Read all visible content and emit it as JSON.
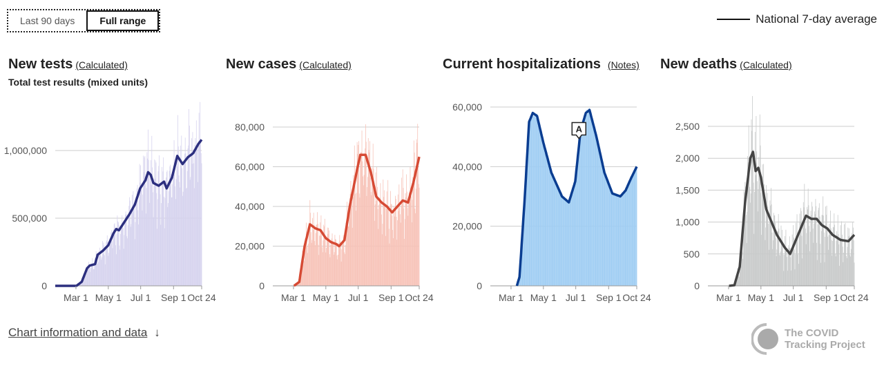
{
  "controls": {
    "last90": "Last 90 days",
    "full": "Full range"
  },
  "legend": {
    "label": "National 7-day average"
  },
  "footer": {
    "link": "Chart information and data",
    "arrow": "↓"
  },
  "logo": {
    "line1": "The COVID",
    "line2": "Tracking Project"
  },
  "chart_data": [
    {
      "type": "bar",
      "title": "New tests",
      "note": "(Calculated)",
      "subtitle": "Total test results (mixed units)",
      "color": "#2c2f7f",
      "bar_color": "#d6d3ee",
      "ylim": [
        0,
        1200000
      ],
      "yticks": [
        0,
        500000,
        1000000
      ],
      "ytick_labels": [
        "0",
        "500,000",
        "1,000,000"
      ],
      "xticks": [
        "Mar 1",
        "May 1",
        "Jul 1",
        "Sep 1",
        "Oct 24"
      ],
      "xtick_days": [
        39,
        100,
        161,
        223,
        276
      ],
      "x_unit": "days since Jan 22",
      "average": [
        [
          0,
          0
        ],
        [
          40,
          0
        ],
        [
          50,
          30000
        ],
        [
          60,
          130000
        ],
        [
          65,
          150000
        ],
        [
          75,
          160000
        ],
        [
          80,
          230000
        ],
        [
          90,
          260000
        ],
        [
          100,
          300000
        ],
        [
          110,
          390000
        ],
        [
          115,
          420000
        ],
        [
          120,
          410000
        ],
        [
          130,
          470000
        ],
        [
          140,
          530000
        ],
        [
          150,
          600000
        ],
        [
          160,
          720000
        ],
        [
          170,
          780000
        ],
        [
          175,
          840000
        ],
        [
          180,
          820000
        ],
        [
          185,
          760000
        ],
        [
          195,
          740000
        ],
        [
          205,
          770000
        ],
        [
          210,
          720000
        ],
        [
          220,
          800000
        ],
        [
          230,
          960000
        ],
        [
          240,
          900000
        ],
        [
          250,
          950000
        ],
        [
          260,
          980000
        ],
        [
          270,
          1050000
        ],
        [
          276,
          1080000
        ]
      ]
    },
    {
      "type": "bar",
      "title": "New cases",
      "note": "(Calculated)",
      "color": "#d64a34",
      "bar_color": "#f7c3b8",
      "ylim": [
        0,
        80000
      ],
      "yticks": [
        0,
        20000,
        40000,
        60000,
        80000
      ],
      "ytick_labels": [
        "0",
        "20,000",
        "40,000",
        "60,000",
        "80,000"
      ],
      "xticks": [
        "Mar 1",
        "May 1",
        "Jul 1",
        "Sep 1",
        "Oct 24"
      ],
      "xtick_days": [
        39,
        100,
        161,
        223,
        276
      ],
      "average": [
        [
          40,
          0
        ],
        [
          50,
          2000
        ],
        [
          60,
          20000
        ],
        [
          70,
          31000
        ],
        [
          80,
          29000
        ],
        [
          90,
          28000
        ],
        [
          100,
          24000
        ],
        [
          110,
          22000
        ],
        [
          120,
          21000
        ],
        [
          125,
          20000
        ],
        [
          135,
          23000
        ],
        [
          145,
          40000
        ],
        [
          160,
          60000
        ],
        [
          165,
          66000
        ],
        [
          175,
          66000
        ],
        [
          185,
          57000
        ],
        [
          195,
          45000
        ],
        [
          205,
          42000
        ],
        [
          215,
          40000
        ],
        [
          225,
          37000
        ],
        [
          235,
          40000
        ],
        [
          245,
          43000
        ],
        [
          255,
          42000
        ],
        [
          265,
          52000
        ],
        [
          276,
          65000
        ]
      ]
    },
    {
      "type": "bar",
      "title": "Current hospitalizations",
      "note": "(Notes)",
      "color": "#0a3d91",
      "bar_color": "#9fcdf3",
      "ylim": [
        0,
        60000
      ],
      "yticks": [
        0,
        20000,
        40000,
        60000
      ],
      "ytick_labels": [
        "0",
        "20,000",
        "40,000",
        "60,000"
      ],
      "xticks": [
        "Mar 1",
        "May 1",
        "Jul 1",
        "Sep 1",
        "Oct 24"
      ],
      "xtick_days": [
        39,
        100,
        161,
        223,
        276
      ],
      "annotation": {
        "label": "A",
        "day": 167
      },
      "average": [
        [
          50,
          0
        ],
        [
          55,
          3000
        ],
        [
          65,
          30000
        ],
        [
          73,
          55000
        ],
        [
          80,
          58000
        ],
        [
          88,
          57000
        ],
        [
          100,
          48000
        ],
        [
          115,
          38000
        ],
        [
          135,
          30000
        ],
        [
          148,
          28000
        ],
        [
          160,
          35000
        ],
        [
          170,
          52000
        ],
        [
          180,
          58000
        ],
        [
          187,
          59000
        ],
        [
          200,
          50000
        ],
        [
          215,
          38000
        ],
        [
          230,
          31000
        ],
        [
          245,
          30000
        ],
        [
          255,
          32000
        ],
        [
          265,
          36000
        ],
        [
          276,
          40000
        ]
      ]
    },
    {
      "type": "bar",
      "title": "New deaths",
      "note": "(Calculated)",
      "color": "#444",
      "bar_color": "#c8caca",
      "ylim": [
        0,
        2700
      ],
      "yticks": [
        0,
        500,
        1000,
        1500,
        2000,
        2500
      ],
      "ytick_labels": [
        "0",
        "500",
        "1,000",
        "1,500",
        "2,000",
        "2,500"
      ],
      "xticks": [
        "Mar 1",
        "May 1",
        "Jul 1",
        "Sep 1",
        "Oct 24"
      ],
      "xtick_days": [
        39,
        100,
        161,
        223,
        276
      ],
      "average": [
        [
          40,
          0
        ],
        [
          50,
          10
        ],
        [
          60,
          300
        ],
        [
          70,
          1300
        ],
        [
          80,
          2000
        ],
        [
          85,
          2100
        ],
        [
          90,
          1800
        ],
        [
          95,
          1850
        ],
        [
          100,
          1700
        ],
        [
          110,
          1200
        ],
        [
          120,
          1000
        ],
        [
          130,
          800
        ],
        [
          145,
          600
        ],
        [
          155,
          500
        ],
        [
          165,
          700
        ],
        [
          175,
          900
        ],
        [
          185,
          1100
        ],
        [
          195,
          1050
        ],
        [
          205,
          1050
        ],
        [
          215,
          950
        ],
        [
          225,
          900
        ],
        [
          235,
          800
        ],
        [
          250,
          720
        ],
        [
          265,
          700
        ],
        [
          276,
          800
        ]
      ]
    }
  ]
}
